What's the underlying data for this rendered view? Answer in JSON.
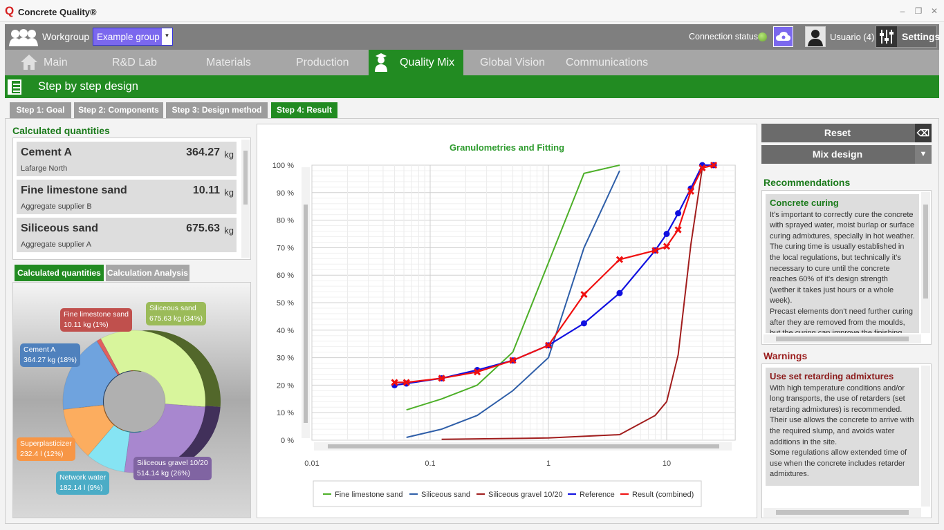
{
  "app": {
    "logo": "Q",
    "title": "Concrete Quality®",
    "window_controls": [
      "minimize",
      "restore",
      "close"
    ]
  },
  "topbar": {
    "workgroup_label": "Workgroup",
    "workgroup_value": "Example group",
    "connection_label": "Connection status",
    "connection_color": "#7cc242",
    "user": "Usuario (4)",
    "settings": "Settings"
  },
  "nav": {
    "items": [
      {
        "label": "Main"
      },
      {
        "label": "R&D Lab"
      },
      {
        "label": "Materials"
      },
      {
        "label": "Production"
      },
      {
        "label": "Quality Mix",
        "active": true
      },
      {
        "label": "Global Vision"
      },
      {
        "label": "Communications"
      }
    ]
  },
  "header": {
    "title": "Step by step design"
  },
  "steps": [
    {
      "label": "Step 1: Goal"
    },
    {
      "label": "Step 2: Components"
    },
    {
      "label": "Step 3: Design method"
    },
    {
      "label": "Step 4: Result",
      "active": true
    }
  ],
  "quantities": {
    "title": "Calculated quantities",
    "items": [
      {
        "name": "Cement A",
        "supplier": "Lafarge North",
        "value": "364.27",
        "unit": "kg"
      },
      {
        "name": "Fine limestone sand",
        "supplier": "Aggregate supplier B",
        "value": "10.11",
        "unit": "kg"
      },
      {
        "name": "Siliceous sand",
        "supplier": "Aggregate supplier A",
        "value": "675.63",
        "unit": "kg"
      }
    ]
  },
  "subtabs": [
    {
      "label": "Calculated quantities",
      "active": true
    },
    {
      "label": "Calculation Analysis"
    }
  ],
  "donut": {
    "slices": [
      {
        "name": "Siliceous sand",
        "label": "675.63 kg (34%)",
        "pct": 34,
        "color": "#d8f59c",
        "dark": "#52672a",
        "tag": "#9bbb59"
      },
      {
        "name": "Siliceous gravel 10/20",
        "label": "514.14 kg (26%)",
        "pct": 26,
        "color": "#a887cf",
        "dark": "#41305a",
        "tag": "#8064a2"
      },
      {
        "name": "Network water",
        "label": "182.14 l (9%)",
        "pct": 9,
        "color": "#86e4f3",
        "dark": "#2d7f8e",
        "tag": "#4bacc6"
      },
      {
        "name": "Superplasticizer",
        "label": "232.4 l (12%)",
        "pct": 12,
        "color": "#fcad5f",
        "dark": "#8a5320",
        "tag": "#f79646"
      },
      {
        "name": "Cement A",
        "label": "364.27 kg (18%)",
        "pct": 18,
        "color": "#6fa3de",
        "dark": "#263f60",
        "tag": "#4f81bd"
      },
      {
        "name": "Fine limestone sand",
        "label": "10.11 kg (1%)",
        "pct": 1,
        "color": "#e06060",
        "dark": "#7a2020",
        "tag": "#c0504d"
      }
    ]
  },
  "right": {
    "reset": "Reset",
    "mix_design": "Mix design",
    "recommendations_title": "Recommendations",
    "recommendation": {
      "title": "Concrete curing",
      "body": "It's important to correctly cure the concrete with sprayed water, moist burlap or surface curing admixtures, specially in hot weather. The curing time is usually established in the local regulations, but technically it's necessary to cure until the concrete reaches 60% of it's design strength (wether it takes just hours or a whole week).\nPrecast elements don't need further curing after they are removed from the moulds, but the curing can improve the finishing."
    },
    "warnings_title": "Warnings",
    "warning": {
      "title": "Use set retarding admixtures",
      "body": "With high temperature conditions and/or long transports, the use of retarders (set retarding admixtures) is recommended.\nTheir use allows the concrete to arrive with the required slump, and avoids water additions in the site.\nSome regulations allow extended time of use when the concrete includes retarder admixtures."
    }
  },
  "chart_data": {
    "type": "line",
    "title": "Granulometries and Fitting",
    "xscale": "log",
    "xlim": [
      0.01,
      38
    ],
    "ylim": [
      0,
      100
    ],
    "xticks": [
      {
        "v": 0.01,
        "label": "0.01"
      },
      {
        "v": 0.1,
        "label": "0.1"
      },
      {
        "v": 1,
        "label": "1"
      },
      {
        "v": 10,
        "label": "10"
      }
    ],
    "yticks": [
      {
        "v": 0,
        "label": "0 %"
      },
      {
        "v": 10,
        "label": "10 %"
      },
      {
        "v": 20,
        "label": "20 %"
      },
      {
        "v": 30,
        "label": "30 %"
      },
      {
        "v": 40,
        "label": "40 %"
      },
      {
        "v": 50,
        "label": "50 %"
      },
      {
        "v": 60,
        "label": "60 %"
      },
      {
        "v": 70,
        "label": "70 %"
      },
      {
        "v": 80,
        "label": "80 %"
      },
      {
        "v": 90,
        "label": "90 %"
      },
      {
        "v": 100,
        "label": "100 %"
      }
    ],
    "grid": true,
    "legend": "bottom",
    "series": [
      {
        "name": "Fine limestone sand",
        "color": "#4caf27",
        "marker": "none",
        "x": [
          0.063,
          0.125,
          0.25,
          0.5,
          2,
          4
        ],
        "y": [
          11,
          15,
          20,
          32,
          97,
          100
        ]
      },
      {
        "name": "Siliceous sand",
        "color": "#2e5ea8",
        "marker": "none",
        "x": [
          0.063,
          0.125,
          0.25,
          0.5,
          1,
          2,
          4
        ],
        "y": [
          1,
          4,
          9,
          18,
          30,
          70,
          98
        ]
      },
      {
        "name": "Siliceous gravel 10/20",
        "color": "#a11d1d",
        "marker": "none",
        "x": [
          0.125,
          1,
          4,
          8,
          10,
          12.5,
          16,
          20,
          25
        ],
        "y": [
          0.3,
          0.8,
          2,
          9,
          14,
          31,
          71,
          99,
          100
        ]
      },
      {
        "name": "Reference",
        "color": "#1010e0",
        "marker": "circle",
        "x": [
          0.05,
          0.063,
          0.125,
          0.25,
          0.5,
          1,
          2,
          4,
          8,
          10,
          12.5,
          16,
          20,
          25
        ],
        "y": [
          20,
          20.6,
          22.5,
          25.5,
          29,
          34.5,
          42.5,
          53.5,
          69,
          75,
          82.5,
          91.5,
          100,
          100
        ]
      },
      {
        "name": "Result (combined)",
        "color": "#f01010",
        "marker": "x",
        "x": [
          0.05,
          0.063,
          0.125,
          0.25,
          0.5,
          1,
          2,
          4,
          8,
          10,
          12.5,
          16,
          20,
          25
        ],
        "y": [
          21,
          21,
          22.5,
          24.8,
          29,
          34.5,
          53,
          65.7,
          69,
          70.5,
          76.5,
          90.5,
          99,
          100
        ]
      }
    ]
  }
}
